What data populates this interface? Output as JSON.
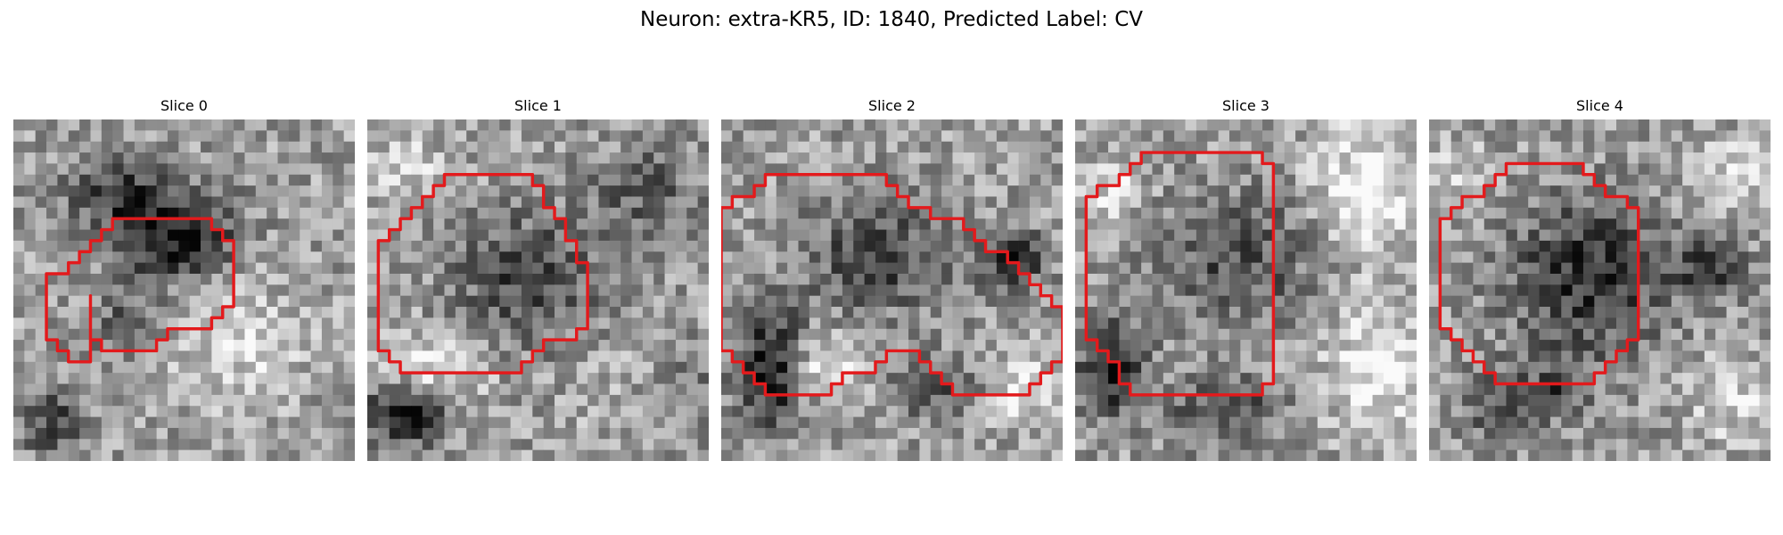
{
  "figure": {
    "title": "Neuron: extra-KR5, ID: 1840, Predicted Label: CV",
    "contour_color": "#e31a1c",
    "colormap": "grayscale"
  },
  "slices": [
    {
      "title": "Slice 0",
      "seed": 11,
      "dark_blobs": [
        [
          14,
          10,
          5.5,
          4.0,
          0.55
        ],
        [
          9,
          6,
          5,
          3,
          0.35
        ],
        [
          3,
          27,
          3,
          3,
          0.35
        ],
        [
          10,
          18,
          4,
          2.5,
          0.25
        ]
      ],
      "light_blobs": [
        [
          20,
          20,
          6,
          6,
          0.2
        ]
      ],
      "contour": [
        [
          7,
          16
        ],
        [
          7,
          20
        ],
        [
          8,
          20
        ],
        [
          8,
          21
        ],
        [
          13,
          21
        ],
        [
          13,
          20
        ],
        [
          14,
          20
        ],
        [
          14,
          19
        ],
        [
          18,
          19
        ],
        [
          18,
          18
        ],
        [
          19,
          18
        ],
        [
          19,
          17
        ],
        [
          20,
          17
        ],
        [
          20,
          11
        ],
        [
          19,
          11
        ],
        [
          19,
          10
        ],
        [
          18,
          10
        ],
        [
          18,
          9
        ],
        [
          9,
          9
        ],
        [
          9,
          10
        ],
        [
          8,
          10
        ],
        [
          8,
          11
        ],
        [
          7,
          11
        ],
        [
          7,
          12
        ],
        [
          6,
          12
        ],
        [
          6,
          13
        ],
        [
          5,
          13
        ],
        [
          5,
          14
        ],
        [
          3,
          14
        ],
        [
          3,
          20
        ],
        [
          4,
          20
        ],
        [
          4,
          21
        ],
        [
          5,
          21
        ],
        [
          5,
          22
        ],
        [
          7,
          22
        ]
      ]
    },
    {
      "title": "Slice 1",
      "seed": 23,
      "dark_blobs": [
        [
          14,
          14,
          6.5,
          6.0,
          0.35
        ],
        [
          3,
          26,
          3.5,
          3,
          0.6
        ],
        [
          27,
          24,
          5,
          4,
          0.25
        ],
        [
          25,
          6,
          5,
          4,
          0.25
        ]
      ],
      "light_blobs": [
        [
          5,
          22,
          5,
          3,
          0.35
        ],
        [
          24,
          24,
          5,
          4,
          0.2
        ],
        [
          3,
          4,
          4,
          3,
          0.2
        ]
      ],
      "contour": [
        [
          7,
          5
        ],
        [
          7,
          6
        ],
        [
          6,
          6
        ],
        [
          6,
          7
        ],
        [
          5,
          7
        ],
        [
          5,
          8
        ],
        [
          4,
          8
        ],
        [
          4,
          9
        ],
        [
          3,
          9
        ],
        [
          3,
          10
        ],
        [
          2,
          10
        ],
        [
          2,
          11
        ],
        [
          1,
          11
        ],
        [
          1,
          21
        ],
        [
          2,
          21
        ],
        [
          2,
          22
        ],
        [
          3,
          22
        ],
        [
          3,
          23
        ],
        [
          14,
          23
        ],
        [
          14,
          22
        ],
        [
          15,
          22
        ],
        [
          15,
          21
        ],
        [
          16,
          21
        ],
        [
          16,
          20
        ],
        [
          19,
          20
        ],
        [
          19,
          19
        ],
        [
          20,
          19
        ],
        [
          20,
          13
        ],
        [
          19,
          13
        ],
        [
          19,
          11
        ],
        [
          18,
          11
        ],
        [
          18,
          9
        ],
        [
          17,
          9
        ],
        [
          17,
          8
        ],
        [
          16,
          8
        ],
        [
          16,
          7
        ],
        [
          16,
          6
        ],
        [
          15,
          6
        ],
        [
          15,
          5
        ]
      ]
    },
    {
      "title": "Slice 2",
      "seed": 37,
      "dark_blobs": [
        [
          14,
          12,
          7,
          5,
          0.35
        ],
        [
          4,
          22,
          3,
          5,
          0.6
        ],
        [
          26,
          12,
          3,
          2.5,
          0.45
        ],
        [
          20,
          24,
          5,
          3,
          0.3
        ]
      ],
      "light_blobs": [
        [
          9,
          22,
          4,
          3,
          0.3
        ],
        [
          26,
          24,
          4,
          3,
          0.3
        ]
      ],
      "contour": [
        [
          2,
          7
        ],
        [
          1,
          7
        ],
        [
          1,
          8
        ],
        [
          0,
          8
        ],
        [
          0,
          21
        ],
        [
          1,
          21
        ],
        [
          1,
          22
        ],
        [
          2,
          22
        ],
        [
          2,
          23
        ],
        [
          3,
          23
        ],
        [
          3,
          24
        ],
        [
          4,
          24
        ],
        [
          4,
          25
        ],
        [
          10,
          25
        ],
        [
          10,
          24
        ],
        [
          11,
          24
        ],
        [
          11,
          23
        ],
        [
          14,
          23
        ],
        [
          14,
          22
        ],
        [
          15,
          22
        ],
        [
          15,
          21
        ],
        [
          18,
          21
        ],
        [
          18,
          22
        ],
        [
          19,
          22
        ],
        [
          19,
          23
        ],
        [
          20,
          23
        ],
        [
          20,
          24
        ],
        [
          21,
          24
        ],
        [
          21,
          25
        ],
        [
          28,
          25
        ],
        [
          28,
          24
        ],
        [
          29,
          24
        ],
        [
          29,
          23
        ],
        [
          30,
          23
        ],
        [
          30,
          22
        ],
        [
          31,
          22
        ],
        [
          31,
          17
        ],
        [
          30,
          17
        ],
        [
          30,
          16
        ],
        [
          29,
          16
        ],
        [
          29,
          15
        ],
        [
          28,
          15
        ],
        [
          28,
          14
        ],
        [
          27,
          14
        ],
        [
          27,
          13
        ],
        [
          26,
          13
        ],
        [
          26,
          12
        ],
        [
          24,
          12
        ],
        [
          24,
          11
        ],
        [
          23,
          11
        ],
        [
          23,
          10
        ],
        [
          22,
          10
        ],
        [
          22,
          9
        ],
        [
          19,
          9
        ],
        [
          19,
          8
        ],
        [
          17,
          8
        ],
        [
          17,
          7
        ],
        [
          16,
          7
        ],
        [
          16,
          6
        ],
        [
          15,
          6
        ],
        [
          15,
          5
        ],
        [
          4,
          5
        ],
        [
          4,
          6
        ],
        [
          3,
          6
        ],
        [
          3,
          7
        ]
      ]
    },
    {
      "title": "Slice 3",
      "seed": 51,
      "dark_blobs": [
        [
          14,
          12,
          8,
          6,
          0.3
        ],
        [
          3,
          22,
          3,
          4,
          0.55
        ],
        [
          13,
          26,
          5,
          3,
          0.35
        ]
      ],
      "light_blobs": [
        [
          26,
          6,
          5,
          6,
          0.35
        ],
        [
          27,
          22,
          5,
          6,
          0.3
        ],
        [
          3,
          6,
          3,
          3,
          0.25
        ]
      ],
      "contour": [
        [
          5,
          4
        ],
        [
          5,
          5
        ],
        [
          4,
          5
        ],
        [
          4,
          6
        ],
        [
          2,
          6
        ],
        [
          2,
          7
        ],
        [
          1,
          7
        ],
        [
          1,
          20
        ],
        [
          2,
          20
        ],
        [
          2,
          21
        ],
        [
          3,
          21
        ],
        [
          3,
          22
        ],
        [
          4,
          22
        ],
        [
          4,
          24
        ],
        [
          5,
          24
        ],
        [
          5,
          25
        ],
        [
          17,
          25
        ],
        [
          17,
          24
        ],
        [
          18,
          24
        ],
        [
          18,
          4
        ],
        [
          17,
          4
        ],
        [
          17,
          3
        ],
        [
          6,
          3
        ],
        [
          6,
          4
        ]
      ]
    },
    {
      "title": "Slice 4",
      "seed": 67,
      "dark_blobs": [
        [
          14,
          14,
          7,
          7,
          0.45
        ],
        [
          25,
          13,
          3,
          2.5,
          0.4
        ],
        [
          5,
          25,
          3,
          3,
          0.3
        ],
        [
          11,
          24,
          3,
          3,
          0.3
        ]
      ],
      "light_blobs": [
        [
          28,
          4,
          4,
          3,
          0.25
        ],
        [
          27,
          25,
          4,
          4,
          0.2
        ],
        [
          2,
          4,
          3,
          3,
          0.15
        ]
      ],
      "contour": [
        [
          5,
          6
        ],
        [
          5,
          7
        ],
        [
          3,
          7
        ],
        [
          3,
          8
        ],
        [
          2,
          8
        ],
        [
          2,
          9
        ],
        [
          1,
          9
        ],
        [
          1,
          19
        ],
        [
          2,
          19
        ],
        [
          2,
          20
        ],
        [
          3,
          20
        ],
        [
          3,
          21
        ],
        [
          4,
          21
        ],
        [
          4,
          22
        ],
        [
          5,
          22
        ],
        [
          5,
          23
        ],
        [
          6,
          23
        ],
        [
          6,
          24
        ],
        [
          15,
          24
        ],
        [
          15,
          23
        ],
        [
          16,
          23
        ],
        [
          16,
          22
        ],
        [
          17,
          22
        ],
        [
          17,
          21
        ],
        [
          18,
          21
        ],
        [
          18,
          20
        ],
        [
          19,
          20
        ],
        [
          19,
          16
        ],
        [
          19,
          8
        ],
        [
          18,
          8
        ],
        [
          18,
          7
        ],
        [
          16,
          7
        ],
        [
          16,
          6
        ],
        [
          15,
          6
        ],
        [
          15,
          5
        ],
        [
          14,
          5
        ],
        [
          14,
          4
        ],
        [
          7,
          4
        ],
        [
          7,
          5
        ],
        [
          6,
          5
        ],
        [
          6,
          6
        ]
      ]
    }
  ]
}
